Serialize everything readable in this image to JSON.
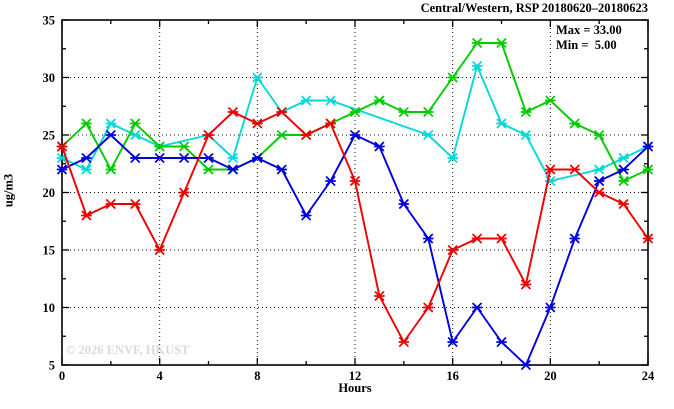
{
  "title": "Central/Western, RSP 20180620–20180623",
  "stats": {
    "max_label": "Max = 33.00",
    "min_label": "Min =  5.00"
  },
  "watermark": "© 2026 ENVF, HKUST",
  "chart_data": {
    "type": "line",
    "title": "Central/Western, RSP 20180620–20180623",
    "xlabel": "Hours",
    "ylabel": "ug/m3",
    "xlim": [
      0,
      24
    ],
    "ylim": [
      5,
      35
    ],
    "grid": "dotted major gridlines",
    "legend_position": "none",
    "x_major_ticks": [
      0,
      4,
      8,
      12,
      16,
      20,
      24
    ],
    "x_minor_ticks": [
      2,
      6,
      10,
      14,
      18,
      22
    ],
    "y_major_ticks": [
      5,
      10,
      15,
      20,
      25,
      30,
      35
    ],
    "y_minor_ticks": [
      7.5,
      12.5,
      17.5,
      22.5,
      27.5,
      32.5
    ],
    "x_gridlines": [
      4,
      8,
      12,
      16,
      20
    ],
    "y_gridlines": [
      10,
      15,
      20,
      25,
      30
    ],
    "x": [
      0,
      1,
      2,
      3,
      4,
      5,
      6,
      7,
      8,
      9,
      10,
      11,
      12,
      13,
      14,
      15,
      16,
      17,
      18,
      19,
      20,
      21,
      22,
      23,
      24
    ],
    "series": [
      {
        "name": "cyan-series",
        "color": "#00d9d9",
        "values": [
          23,
          22,
          26,
          25,
          24,
          null,
          25,
          23,
          30,
          27,
          28,
          28,
          null,
          null,
          null,
          25,
          23,
          31,
          26,
          25,
          21,
          null,
          22,
          23,
          24
        ]
      },
      {
        "name": "green-series",
        "color": "#00cc00",
        "values": [
          24,
          26,
          22,
          26,
          24,
          24,
          22,
          22,
          23,
          25,
          25,
          26,
          27,
          28,
          27,
          27,
          30,
          33,
          33,
          27,
          28,
          26,
          25,
          21,
          22
        ]
      },
      {
        "name": "blue-series",
        "color": "#0000dd",
        "values": [
          22,
          23,
          25,
          23,
          23,
          23,
          23,
          22,
          23,
          22,
          18,
          21,
          25,
          24,
          19,
          16,
          7,
          10,
          7,
          5,
          10,
          16,
          21,
          22,
          24
        ]
      },
      {
        "name": "red-series",
        "color": "#ee0000",
        "values": [
          24,
          18,
          19,
          19,
          15,
          20,
          25,
          27,
          26,
          27,
          25,
          26,
          21,
          11,
          7,
          10,
          15,
          16,
          16,
          12,
          22,
          22,
          20,
          19,
          16
        ]
      }
    ],
    "annotations": {
      "max": 33.0,
      "min": 5.0
    }
  }
}
